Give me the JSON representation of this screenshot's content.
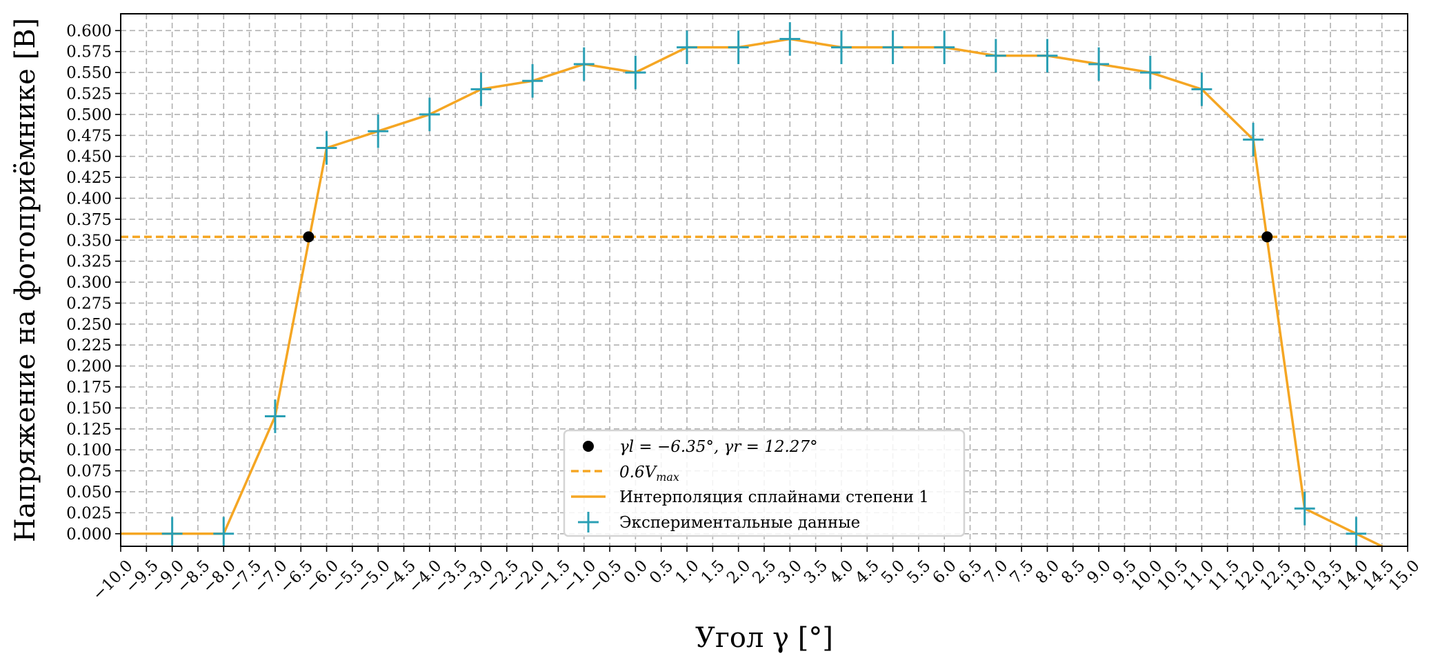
{
  "chart_data": {
    "type": "line",
    "xlabel": "Угол γ [°]",
    "ylabel": "Напряжение на фотоприёмнике [B]",
    "xlim": [
      -10.0,
      15.0
    ],
    "ylim": [
      -0.015,
      0.62
    ],
    "xticks": [
      -10.0,
      -9.5,
      -9.0,
      -8.5,
      -8.0,
      -7.5,
      -7.0,
      -6.5,
      -6.0,
      -5.5,
      -5.0,
      -4.5,
      -4.0,
      -3.5,
      -3.0,
      -2.5,
      -2.0,
      -1.5,
      -1.0,
      -0.5,
      0.0,
      0.5,
      1.0,
      1.5,
      2.0,
      2.5,
      3.0,
      3.5,
      4.0,
      4.5,
      5.0,
      5.5,
      6.0,
      6.5,
      7.0,
      7.5,
      8.0,
      8.5,
      9.0,
      9.5,
      10.0,
      10.5,
      11.0,
      11.5,
      12.0,
      12.5,
      13.0,
      13.5,
      14.0,
      14.5,
      15.0
    ],
    "yticks": [
      0.0,
      0.025,
      0.05,
      0.075,
      0.1,
      0.125,
      0.15,
      0.175,
      0.2,
      0.225,
      0.25,
      0.275,
      0.3,
      0.325,
      0.35,
      0.375,
      0.4,
      0.425,
      0.45,
      0.475,
      0.5,
      0.525,
      0.55,
      0.575,
      0.6
    ],
    "xtick_labels": [
      "−10.0",
      "−9.5",
      "−9.0",
      "−8.5",
      "−8.0",
      "−7.5",
      "−7.0",
      "−6.5",
      "−6.0",
      "−5.5",
      "−5.0",
      "−4.5",
      "−4.0",
      "−3.5",
      "−3.0",
      "−2.5",
      "−2.0",
      "−1.5",
      "−1.0",
      "−0.5",
      "0.0",
      "0.5",
      "1.0",
      "1.5",
      "2.0",
      "2.5",
      "3.0",
      "3.5",
      "4.0",
      "4.5",
      "5.0",
      "5.5",
      "6.0",
      "6.5",
      "7.0",
      "7.5",
      "8.0",
      "8.5",
      "9.0",
      "9.5",
      "10.0",
      "10.5",
      "11.0",
      "11.5",
      "12.0",
      "12.5",
      "13.0",
      "13.5",
      "14.0",
      "14.5",
      "15.0"
    ],
    "ytick_labels": [
      "0.000",
      "0.025",
      "0.050",
      "0.075",
      "0.100",
      "0.125",
      "0.150",
      "0.175",
      "0.200",
      "0.225",
      "0.250",
      "0.275",
      "0.300",
      "0.325",
      "0.350",
      "0.375",
      "0.400",
      "0.425",
      "0.450",
      "0.475",
      "0.500",
      "0.525",
      "0.550",
      "0.575",
      "0.600"
    ],
    "grid": true,
    "legend_position": "lower-center",
    "series": [
      {
        "name": "Экспериментальные данные",
        "kind": "errorbar",
        "color": "#2a9fb4",
        "x": [
          -9,
          -8,
          -7,
          -6,
          -5,
          -4,
          -3,
          -2,
          -1,
          0,
          1,
          2,
          3,
          4,
          5,
          6,
          7,
          8,
          9,
          10,
          11,
          12,
          13,
          14
        ],
        "y": [
          0.0,
          0.0,
          0.14,
          0.46,
          0.48,
          0.5,
          0.53,
          0.54,
          0.56,
          0.55,
          0.58,
          0.58,
          0.59,
          0.58,
          0.58,
          0.58,
          0.57,
          0.57,
          0.56,
          0.55,
          0.53,
          0.47,
          0.03,
          0.0
        ],
        "x_err": 0.2,
        "y_err": 0.02
      },
      {
        "name": "Интерполяция сплайнами степени 1",
        "kind": "line",
        "color": "#f5a623",
        "x": [
          -10,
          -9,
          -8,
          -7,
          -6,
          -5,
          -4,
          -3,
          -2,
          -1,
          0,
          1,
          2,
          3,
          4,
          5,
          6,
          7,
          8,
          9,
          10,
          11,
          12,
          13,
          14,
          14.6
        ],
        "y": [
          0.0,
          0.0,
          0.0,
          0.14,
          0.46,
          0.48,
          0.5,
          0.53,
          0.54,
          0.56,
          0.55,
          0.58,
          0.58,
          0.59,
          0.58,
          0.58,
          0.58,
          0.57,
          0.57,
          0.56,
          0.55,
          0.53,
          0.47,
          0.03,
          0.0,
          -0.018
        ]
      },
      {
        "name": "0.6V",
        "name_sub": "max",
        "kind": "hline",
        "color": "#f5a623",
        "y": 0.354
      },
      {
        "name": "γl = −6.35°, γr = 12.27°",
        "kind": "points",
        "color": "#000000",
        "x": [
          -6.35,
          12.27
        ],
        "y": [
          0.354,
          0.354
        ]
      }
    ]
  }
}
